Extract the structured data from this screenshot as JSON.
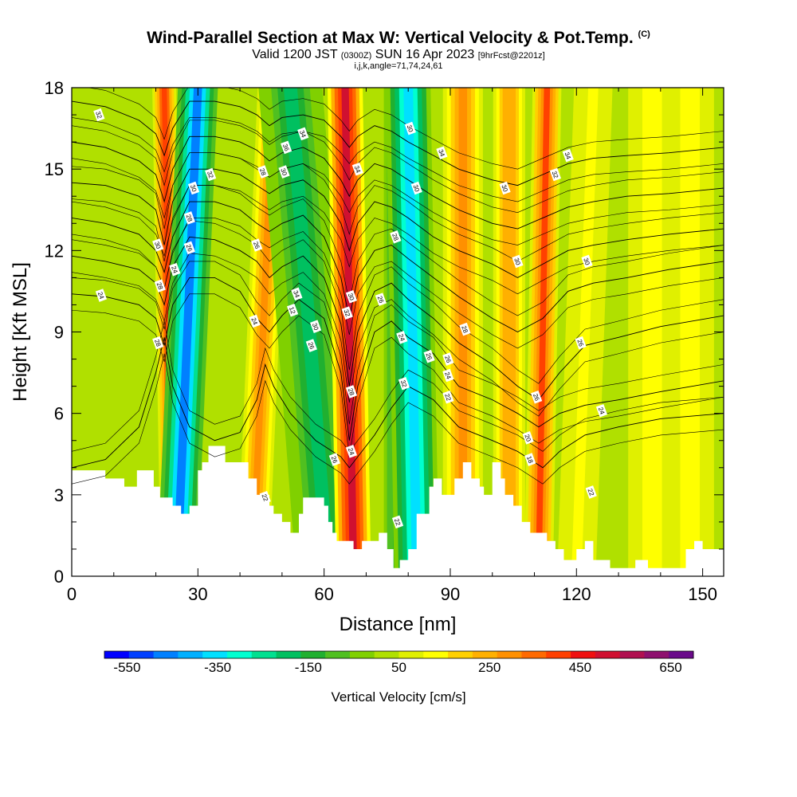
{
  "header": {
    "title": "Wind-Parallel Section at Max W: Vertical Velocity & Pot.Temp.",
    "copyright": "(C)",
    "valid_prefix": "Valid 1200 JST",
    "valid_utc": "(0300Z)",
    "valid_date": "SUN 16 Apr 2023",
    "forecast": "[9hrFcst@2201z]",
    "params": "i,j,k,angle=71,74,24,61"
  },
  "chart_data": {
    "type": "heatmap",
    "xlabel": "Distance [nm]",
    "ylabel": "Height [Kft MSL]",
    "xlim": [
      0,
      155
    ],
    "ylim": [
      0,
      18
    ],
    "x_ticks": [
      0,
      30,
      60,
      90,
      120,
      150
    ],
    "y_ticks": [
      0,
      3,
      6,
      9,
      12,
      15,
      18
    ],
    "colorbar": {
      "label": "Vertical Velocity [cm/s]",
      "tick_labels": [
        "-550",
        "-350",
        "-150",
        "50",
        "250",
        "450",
        "650"
      ],
      "tick_values": [
        -550,
        -350,
        -150,
        50,
        250,
        450,
        650
      ],
      "range": [
        -600,
        700
      ],
      "colors": [
        "#0000ff",
        "#0040ff",
        "#0080ff",
        "#00b0ff",
        "#00e0ff",
        "#00ffd0",
        "#00e090",
        "#00c060",
        "#20b030",
        "#50c020",
        "#80d000",
        "#b0e000",
        "#e0f000",
        "#ffff00",
        "#ffd000",
        "#ffb000",
        "#ff9000",
        "#ff6a00",
        "#ff4000",
        "#f01010",
        "#d01030",
        "#b01050",
        "#8e106e",
        "#6a0a8a"
      ]
    },
    "bands": [
      {
        "x_bottom": 24,
        "x_top": 22,
        "w": 1.5,
        "value": 400
      },
      {
        "x_bottom": 25,
        "x_top": 30,
        "w": 2.5,
        "value": -450
      },
      {
        "x_bottom": 43,
        "x_top": 48,
        "w": 2.0,
        "value": 300
      },
      {
        "x_bottom": 61,
        "x_top": 52,
        "w": 4.0,
        "value": -180
      },
      {
        "x_bottom": 67,
        "x_top": 65,
        "w": 2.2,
        "value": 520
      },
      {
        "x_bottom": 78,
        "x_top": 78,
        "w": 2.0,
        "value": -200
      },
      {
        "x_bottom": 82,
        "x_top": 80,
        "w": 2.8,
        "value": -380
      },
      {
        "x_bottom": 93,
        "x_top": 93,
        "w": 2.5,
        "value": 320
      },
      {
        "x_bottom": 104,
        "x_top": 104,
        "w": 2.0,
        "value": 260
      },
      {
        "x_bottom": 111,
        "x_top": 113,
        "w": 1.8,
        "value": 380
      },
      {
        "x_bottom": 120,
        "x_top": 124,
        "w": 3.0,
        "value": 120
      },
      {
        "x_bottom": 138,
        "x_top": 138,
        "w": 3.0,
        "value": 150
      },
      {
        "x_bottom": 147,
        "x_top": 147,
        "w": 3.0,
        "value": 140
      }
    ],
    "terrain": {
      "x": [
        0,
        7.5,
        8,
        12,
        12.5,
        15,
        15.5,
        19.5,
        21,
        24,
        26,
        27,
        28,
        30,
        31,
        32.5,
        34,
        36.5,
        38,
        42,
        44,
        47,
        48,
        50,
        52,
        54,
        55,
        57,
        60,
        61,
        62,
        63,
        66,
        67,
        69,
        71,
        73,
        75,
        76.5,
        77.5,
        78,
        80,
        82,
        85,
        86,
        88,
        91,
        93,
        95,
        97,
        98,
        100,
        102,
        103,
        105,
        107,
        109,
        113,
        115,
        117,
        120,
        122,
        124,
        128,
        132,
        134,
        137,
        141,
        146,
        148,
        150,
        155
      ],
      "h": [
        3.9,
        3.9,
        3.6,
        3.6,
        3.3,
        3.3,
        3.9,
        3.3,
        2.9,
        2.6,
        2.3,
        2.3,
        2.6,
        3.9,
        4.2,
        4.8,
        4.8,
        4.2,
        4.2,
        3.6,
        3.0,
        2.6,
        2.3,
        2.0,
        1.6,
        2.3,
        2.9,
        2.9,
        2.6,
        2.0,
        1.6,
        1.3,
        1.3,
        1.0,
        1.3,
        1.3,
        1.6,
        1.0,
        0.3,
        0.3,
        0.6,
        1.0,
        2.3,
        3.3,
        3.6,
        3.0,
        3.6,
        4.2,
        3.6,
        3.3,
        3.0,
        4.2,
        3.6,
        3.0,
        2.6,
        2.0,
        1.6,
        1.3,
        1.0,
        0.6,
        1.0,
        1.3,
        0.6,
        0.3,
        0.3,
        0.6,
        0.3,
        0.3,
        1.0,
        1.3,
        1.0,
        1.0
      ]
    },
    "contours": [
      {
        "x": [
          0,
          8,
          16,
          20,
          22,
          24,
          28,
          34,
          40,
          44,
          46,
          48,
          52,
          58,
          64,
          66,
          68,
          72,
          76,
          80,
          86,
          92,
          100,
          106,
          110,
          112,
          116,
          122,
          130,
          140,
          155
        ],
        "y": [
          4.0,
          4.3,
          5.5,
          7.5,
          8.8,
          7.0,
          5.5,
          5.0,
          5.3,
          6.5,
          7.8,
          7.0,
          6.0,
          5.0,
          4.4,
          4.0,
          4.4,
          5.2,
          6.2,
          7.0,
          6.5,
          5.5,
          5.0,
          4.6,
          4.2,
          4.0,
          4.6,
          5.2,
          5.5,
          5.8,
          6.0
        ],
        "label": "22",
        "lx": 46,
        "ly": 2.9
      },
      {
        "x": [
          0,
          8,
          16,
          20,
          22,
          24,
          28,
          34,
          40,
          44,
          47,
          50,
          54,
          60,
          64,
          66,
          68,
          72,
          76,
          80,
          86,
          92,
          100,
          106,
          111,
          116,
          122,
          130,
          140,
          155
        ],
        "y": [
          10.4,
          10.3,
          10.0,
          9.5,
          8.5,
          10.0,
          11.0,
          11.0,
          10.5,
          9.5,
          9.0,
          9.6,
          10.2,
          9.5,
          7.5,
          5.0,
          7.0,
          9.0,
          9.4,
          8.8,
          8.2,
          7.0,
          6.5,
          6.0,
          5.5,
          6.0,
          6.3,
          6.5,
          6.8,
          7.2
        ],
        "label": "24",
        "lx": 7,
        "ly": 10.35
      },
      {
        "x": [
          0,
          8,
          16,
          20,
          22,
          24,
          28,
          34,
          40,
          44,
          47,
          50,
          55,
          60,
          64,
          66,
          68,
          72,
          76,
          80,
          86,
          92,
          100,
          106,
          111,
          116,
          122,
          130,
          140,
          155
        ],
        "y": [
          11.8,
          11.6,
          11.3,
          10.8,
          10.0,
          11.4,
          12.5,
          12.4,
          12.0,
          11.6,
          11.0,
          11.4,
          11.8,
          11.0,
          9.3,
          7.0,
          9.0,
          10.5,
          10.8,
          10.2,
          9.5,
          8.6,
          7.8,
          7.0,
          6.5,
          7.5,
          8.5,
          8.8,
          9.2,
          9.6
        ],
        "label": "26",
        "lx": 85,
        "ly": 8.1
      },
      {
        "x": [
          0,
          8,
          16,
          20,
          22,
          24,
          28,
          34,
          40,
          44,
          47,
          50,
          55,
          60,
          64,
          66,
          68,
          72,
          76,
          80,
          86,
          92,
          100,
          106,
          112,
          118,
          124,
          132,
          142,
          155
        ],
        "y": [
          13.2,
          13.0,
          12.6,
          12.0,
          11.2,
          12.5,
          13.8,
          13.8,
          13.5,
          13.0,
          12.7,
          13.0,
          13.3,
          12.5,
          11.0,
          9.5,
          11.0,
          12.0,
          12.2,
          11.7,
          11.0,
          10.3,
          9.5,
          9.0,
          9.5,
          10.5,
          10.8,
          11.0,
          11.3,
          11.6
        ],
        "label": "28",
        "lx": 21,
        "ly": 10.7
      },
      {
        "x": [
          0,
          8,
          16,
          20,
          22,
          24,
          28,
          34,
          40,
          44,
          47,
          50,
          55,
          60,
          64,
          66,
          68,
          72,
          76,
          80,
          86,
          92,
          100,
          106,
          112,
          118,
          124,
          132,
          142,
          155
        ],
        "y": [
          14.5,
          14.4,
          14.0,
          13.5,
          12.2,
          13.8,
          15.0,
          15.0,
          14.8,
          14.4,
          14.1,
          14.4,
          14.6,
          14.0,
          13.0,
          12.0,
          13.0,
          13.8,
          13.6,
          13.2,
          12.5,
          12.0,
          11.5,
          11.0,
          11.5,
          12.0,
          12.2,
          12.4,
          12.6,
          12.8
        ],
        "label": "30",
        "lx": 106,
        "ly": 11.6
      },
      {
        "x": [
          0,
          8,
          16,
          20,
          22,
          24,
          28,
          34,
          40,
          44,
          47,
          50,
          55,
          60,
          64,
          66,
          68,
          72,
          76,
          80,
          86,
          92,
          100,
          106,
          112,
          118,
          124,
          132,
          142,
          155
        ],
        "y": [
          16.0,
          15.8,
          15.3,
          14.8,
          13.8,
          15.0,
          16.2,
          16.2,
          16.0,
          15.7,
          15.3,
          15.6,
          15.8,
          15.4,
          14.6,
          14.0,
          14.6,
          15.2,
          15.0,
          14.6,
          14.0,
          13.5,
          13.0,
          12.8,
          13.2,
          13.6,
          13.8,
          14.0,
          14.1,
          14.3
        ],
        "label": "32",
        "lx": 33,
        "ly": 14.8
      },
      {
        "x": [
          0,
          8,
          16,
          20,
          22,
          24,
          28,
          34,
          40,
          44,
          47,
          50,
          55,
          60,
          64,
          66,
          68,
          72,
          76,
          80,
          86,
          92,
          100,
          106,
          112,
          118,
          124,
          132,
          142,
          155
        ],
        "y": [
          17.5,
          17.3,
          16.8,
          16.3,
          15.5,
          16.5,
          17.5,
          17.5,
          17.3,
          17.0,
          16.6,
          16.9,
          17.0,
          16.8,
          16.2,
          15.8,
          16.2,
          16.6,
          16.4,
          16.0,
          15.5,
          15.0,
          14.6,
          14.4,
          14.8,
          15.2,
          15.4,
          15.5,
          15.6,
          15.8
        ],
        "label": "34",
        "lx": 88,
        "ly": 15.6
      }
    ],
    "labels": [
      {
        "x": 6.5,
        "y": 17.0,
        "text": "32"
      },
      {
        "x": 51,
        "y": 15.8,
        "text": "36"
      },
      {
        "x": 55,
        "y": 16.3,
        "text": "34"
      },
      {
        "x": 45.5,
        "y": 14.9,
        "text": "28"
      },
      {
        "x": 50.5,
        "y": 14.9,
        "text": "30"
      },
      {
        "x": 29,
        "y": 14.3,
        "text": "30"
      },
      {
        "x": 28,
        "y": 13.2,
        "text": "28"
      },
      {
        "x": 28,
        "y": 12.1,
        "text": "26"
      },
      {
        "x": 20.5,
        "y": 12.2,
        "text": "30"
      },
      {
        "x": 24.5,
        "y": 11.3,
        "text": "24"
      },
      {
        "x": 20.5,
        "y": 8.6,
        "text": "28"
      },
      {
        "x": 44,
        "y": 12.2,
        "text": "26"
      },
      {
        "x": 43.5,
        "y": 9.4,
        "text": "24"
      },
      {
        "x": 53.5,
        "y": 10.4,
        "text": "34"
      },
      {
        "x": 52.5,
        "y": 9.8,
        "text": "12"
      },
      {
        "x": 58,
        "y": 9.2,
        "text": "30"
      },
      {
        "x": 57,
        "y": 8.5,
        "text": "26"
      },
      {
        "x": 68,
        "y": 15.0,
        "text": "34"
      },
      {
        "x": 66.5,
        "y": 10.3,
        "text": "30"
      },
      {
        "x": 65.5,
        "y": 9.7,
        "text": "32"
      },
      {
        "x": 66.5,
        "y": 6.8,
        "text": "28"
      },
      {
        "x": 62.5,
        "y": 4.3,
        "text": "26"
      },
      {
        "x": 66.5,
        "y": 4.6,
        "text": "24"
      },
      {
        "x": 73.5,
        "y": 10.2,
        "text": "26"
      },
      {
        "x": 80.5,
        "y": 16.5,
        "text": "30"
      },
      {
        "x": 77,
        "y": 12.5,
        "text": "28"
      },
      {
        "x": 82,
        "y": 14.3,
        "text": "30"
      },
      {
        "x": 78.5,
        "y": 8.8,
        "text": "24"
      },
      {
        "x": 79,
        "y": 7.1,
        "text": "32"
      },
      {
        "x": 93.5,
        "y": 9.1,
        "text": "28"
      },
      {
        "x": 89.5,
        "y": 8.0,
        "text": "26"
      },
      {
        "x": 89.5,
        "y": 7.4,
        "text": "24"
      },
      {
        "x": 89.5,
        "y": 6.6,
        "text": "22"
      },
      {
        "x": 118,
        "y": 15.5,
        "text": "34"
      },
      {
        "x": 115,
        "y": 14.8,
        "text": "32"
      },
      {
        "x": 103,
        "y": 14.3,
        "text": "30"
      },
      {
        "x": 110.5,
        "y": 6.6,
        "text": "26"
      },
      {
        "x": 108.5,
        "y": 5.1,
        "text": "20"
      },
      {
        "x": 109,
        "y": 4.3,
        "text": "18"
      },
      {
        "x": 122.5,
        "y": 11.6,
        "text": "30"
      },
      {
        "x": 121,
        "y": 8.6,
        "text": "26"
      },
      {
        "x": 126,
        "y": 6.1,
        "text": "24"
      },
      {
        "x": 123.5,
        "y": 3.1,
        "text": "22"
      },
      {
        "x": 77.5,
        "y": 2.0,
        "text": "22"
      }
    ]
  }
}
